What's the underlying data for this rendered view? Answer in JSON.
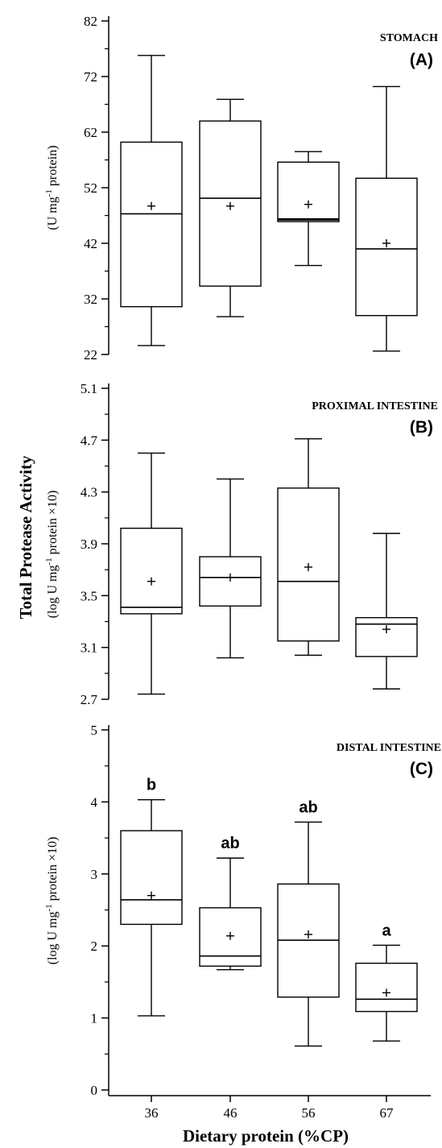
{
  "figure": {
    "shared_ylabel": "Total Protease Activity",
    "xlabel": "Dietary protein (%CP)"
  },
  "chart_data": [
    {
      "type": "box",
      "panel_title": "STOMACH",
      "panel_letter": "(A)",
      "ylabel": "(U mg-1 protein)",
      "yticks": [
        22,
        32,
        42,
        52,
        62,
        72,
        82
      ],
      "ylim": [
        22,
        82
      ],
      "categories": [
        "36",
        "46",
        "56",
        "67"
      ],
      "boxes": [
        {
          "category": "36",
          "min": 23.6,
          "q1": 30.6,
          "median": 47.3,
          "q3": 60.2,
          "max": 75.8,
          "mean": 48.7,
          "letter": ""
        },
        {
          "category": "46",
          "min": 28.8,
          "q1": 34.3,
          "median": 50.1,
          "q3": 64.0,
          "max": 67.9,
          "mean": 48.7,
          "letter": ""
        },
        {
          "category": "56",
          "min": 38.0,
          "q1": 45.9,
          "median": 46.3,
          "q3": 56.6,
          "max": 58.5,
          "mean": 49.0,
          "letter": ""
        },
        {
          "category": "67",
          "min": 22.6,
          "q1": 29.0,
          "median": 41.0,
          "q3": 53.7,
          "max": 70.2,
          "mean": 42.0,
          "letter": ""
        }
      ]
    },
    {
      "type": "box",
      "panel_title": "PROXIMAL INTESTINE",
      "panel_letter": "(B)",
      "ylabel": "(log U mg-1 protein ×10)",
      "yticks": [
        2.7,
        3.1,
        3.5,
        3.9,
        4.3,
        4.7,
        5.1
      ],
      "ylim": [
        2.7,
        5.1
      ],
      "categories": [
        "36",
        "46",
        "56",
        "67"
      ],
      "boxes": [
        {
          "category": "36",
          "min": 2.74,
          "q1": 3.36,
          "median": 3.41,
          "q3": 4.02,
          "max": 4.6,
          "mean": 3.61,
          "letter": ""
        },
        {
          "category": "46",
          "min": 3.02,
          "q1": 3.42,
          "median": 3.64,
          "q3": 3.8,
          "max": 4.4,
          "mean": 3.64,
          "letter": ""
        },
        {
          "category": "56",
          "min": 3.04,
          "q1": 3.15,
          "median": 3.61,
          "q3": 4.33,
          "max": 4.71,
          "mean": 3.72,
          "letter": ""
        },
        {
          "category": "67",
          "min": 2.78,
          "q1": 3.03,
          "median": 3.28,
          "q3": 3.33,
          "max": 3.98,
          "mean": 3.24,
          "letter": ""
        }
      ]
    },
    {
      "type": "box",
      "panel_title": "DISTAL INTESTINE",
      "panel_letter": "(C)",
      "ylabel": "(log U mg-1 protein ×10)",
      "yticks": [
        0,
        1,
        2,
        3,
        4,
        5
      ],
      "ylim": [
        0,
        5
      ],
      "categories": [
        "36",
        "46",
        "56",
        "67"
      ],
      "boxes": [
        {
          "category": "36",
          "min": 1.03,
          "q1": 2.3,
          "median": 2.64,
          "q3": 3.6,
          "max": 4.03,
          "mean": 2.7,
          "letter": "b"
        },
        {
          "category": "46",
          "min": 1.67,
          "q1": 1.72,
          "median": 1.86,
          "q3": 2.53,
          "max": 3.22,
          "mean": 2.14,
          "letter": "ab"
        },
        {
          "category": "56",
          "min": 0.61,
          "q1": 1.29,
          "median": 2.08,
          "q3": 2.86,
          "max": 3.72,
          "mean": 2.16,
          "letter": "ab"
        },
        {
          "category": "67",
          "min": 0.68,
          "q1": 1.09,
          "median": 1.26,
          "q3": 1.76,
          "max": 2.01,
          "mean": 1.35,
          "letter": "a"
        }
      ]
    }
  ]
}
